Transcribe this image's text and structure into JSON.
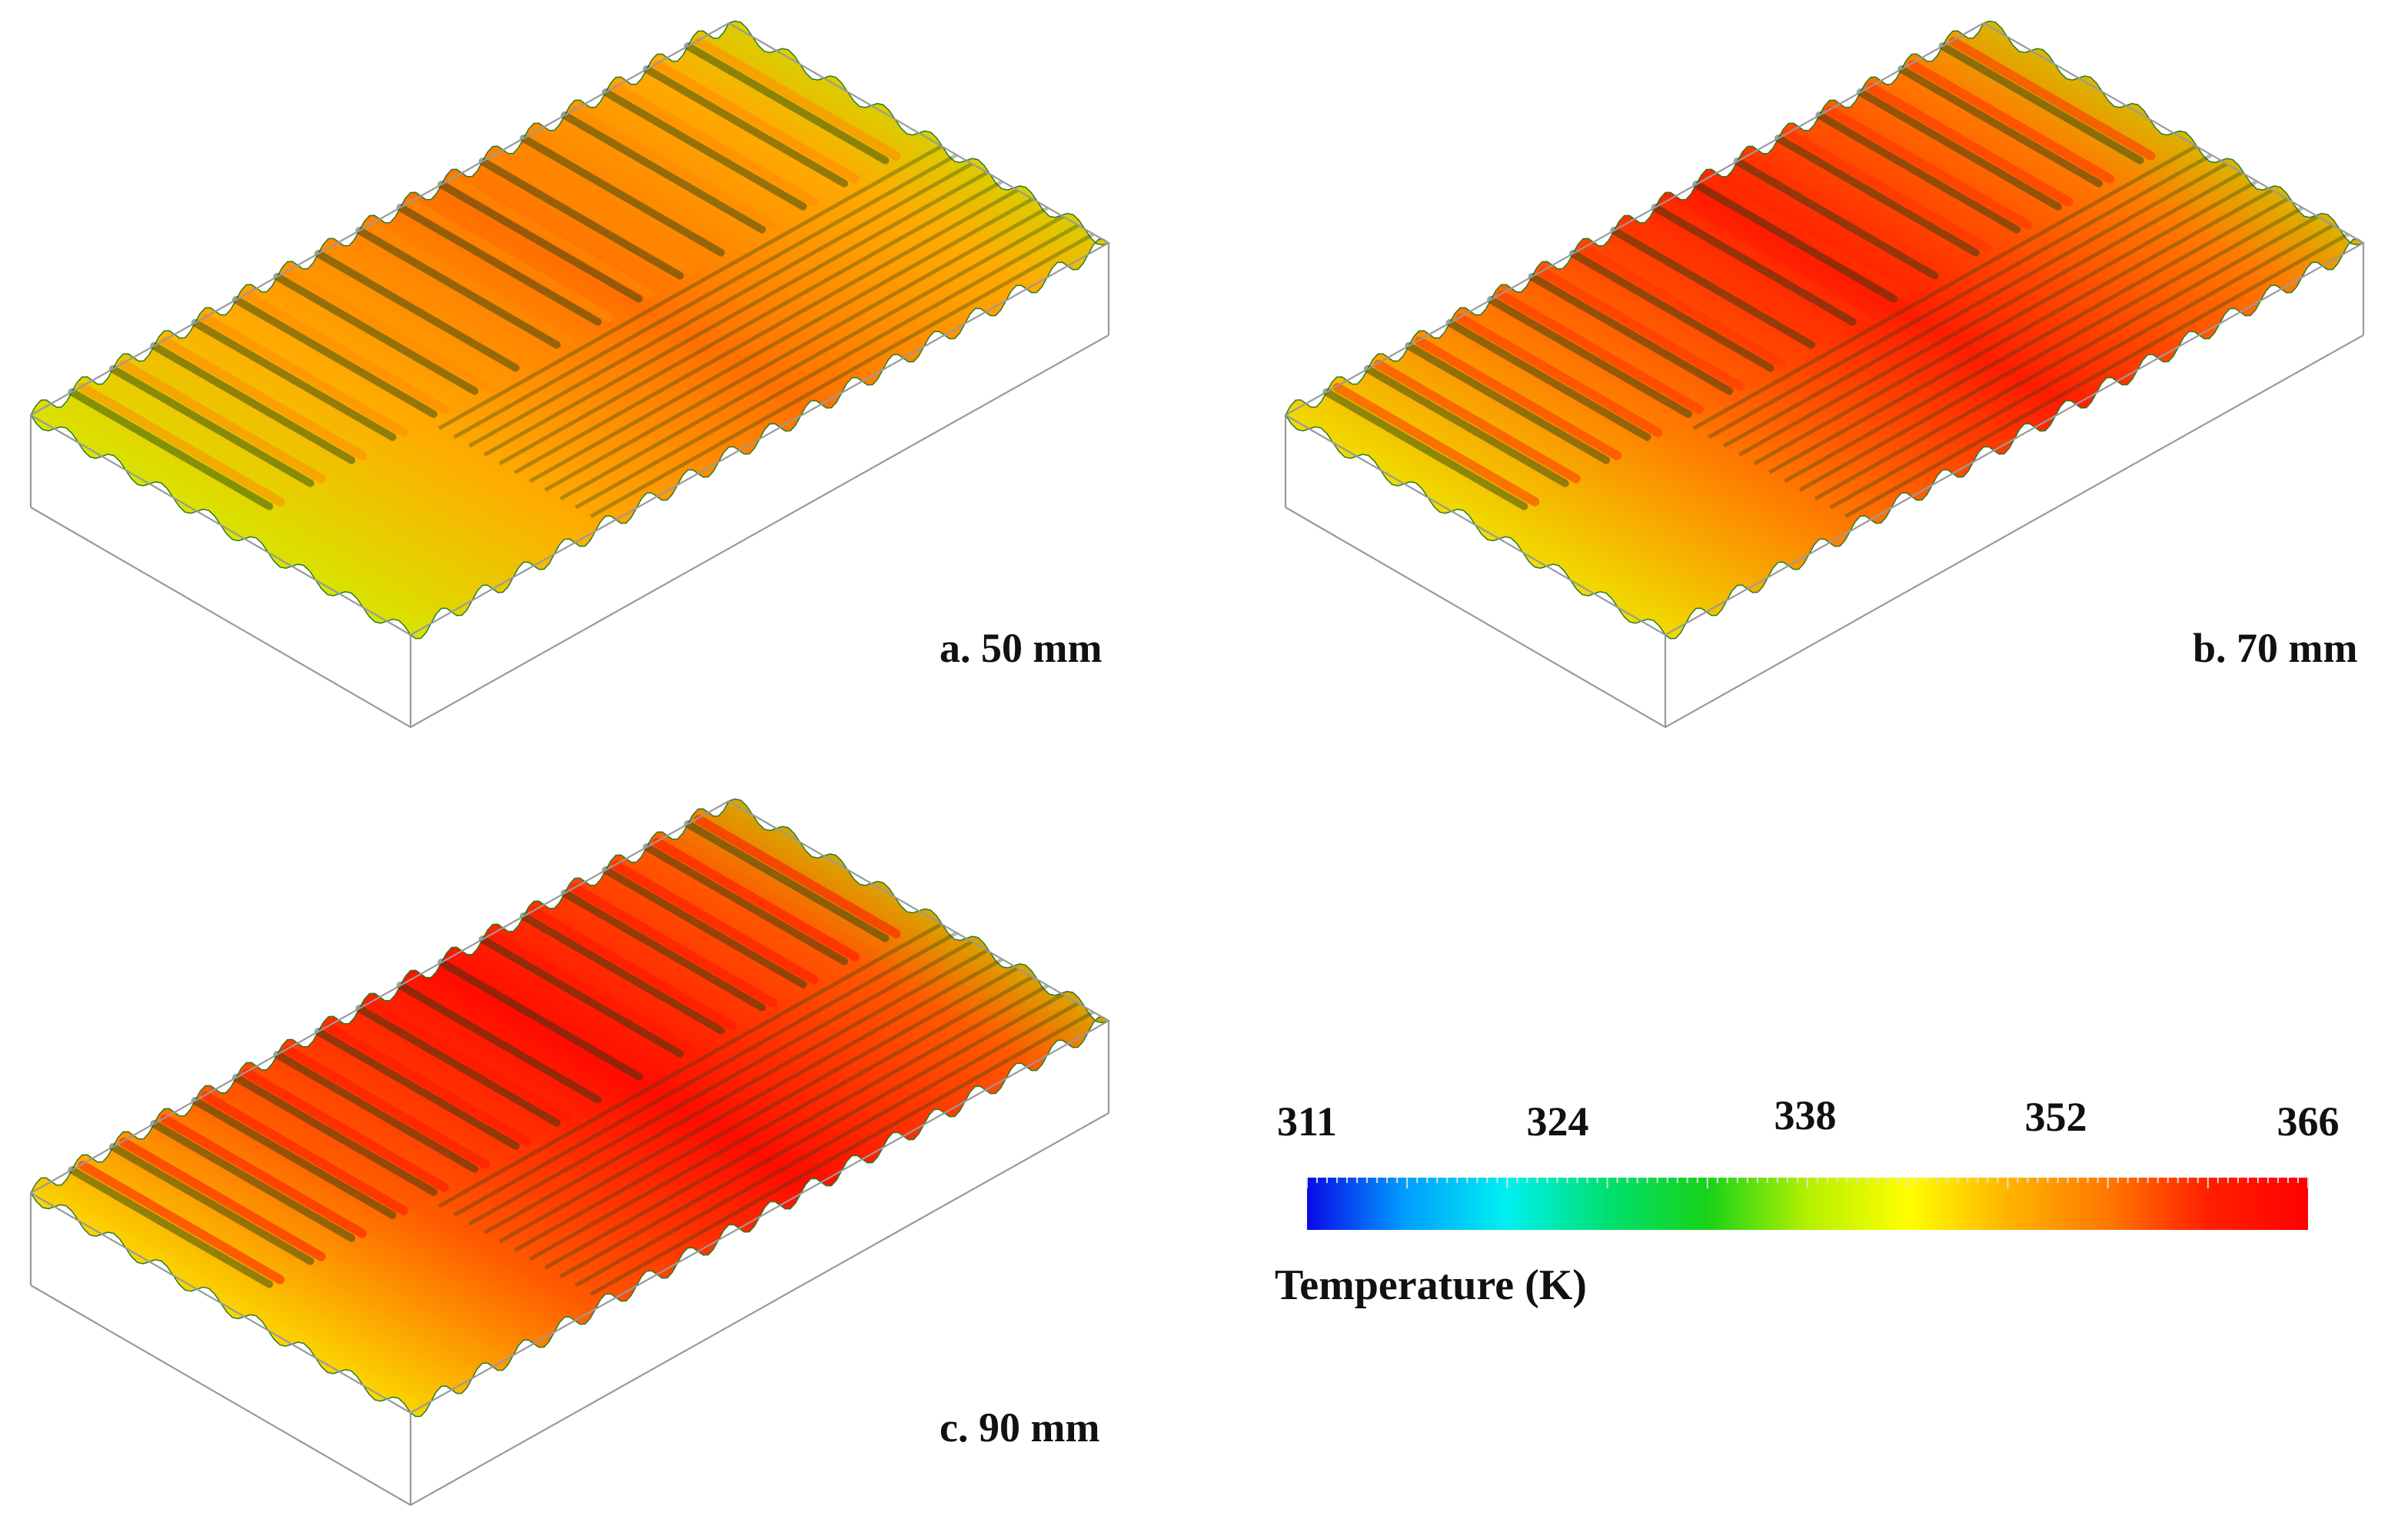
{
  "panels": [
    {
      "id": "a",
      "caption": "a. 50 mm",
      "heat": 0.55
    },
    {
      "id": "b",
      "caption": "b. 70 mm",
      "heat": 0.82
    },
    {
      "id": "c",
      "caption": "c. 90 mm",
      "heat": 0.95
    }
  ],
  "colorbar": {
    "title": "Temperature (K)",
    "min": 311,
    "max": 366,
    "ticks": [
      "311",
      "324",
      "338",
      "352",
      "366"
    ],
    "colors": [
      "#0a0ae6",
      "#00a0ff",
      "#00f0f0",
      "#00e070",
      "#18d218",
      "#b4f000",
      "#ffff00",
      "#ffb400",
      "#ff7800",
      "#ff2000",
      "#ff0000"
    ]
  }
}
